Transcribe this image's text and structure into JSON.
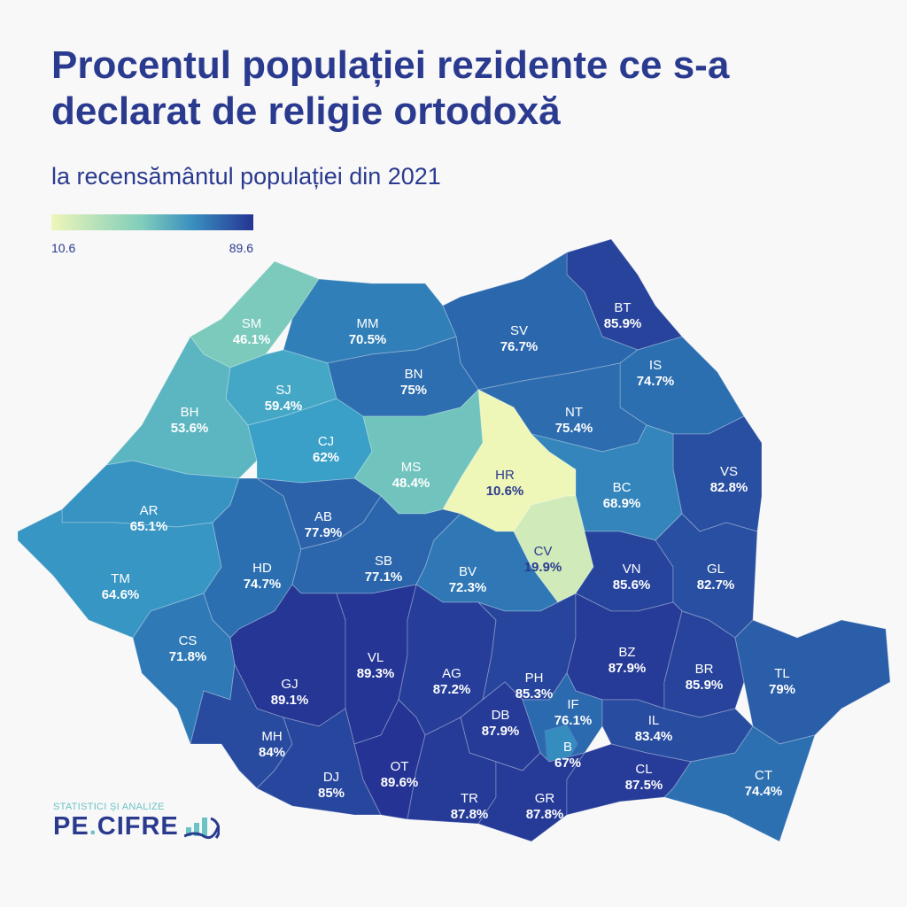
{
  "title": "Procentul populației rezidente ce s-a declarat de religie ortodoxă",
  "subtitle": "la recensământul populației din 2021",
  "legend": {
    "min": "10.6",
    "max": "89.6"
  },
  "logo": {
    "tagline": "STATISTICI ȘI ANALIZE",
    "name_part1": "PE",
    "name_part2": "CIFRE"
  },
  "chart_data": {
    "type": "choropleth",
    "title": "Procentul populației rezidente ce s-a declarat de religie ortodoxă",
    "unit": "%",
    "range": [
      10.6,
      89.6
    ],
    "colors": {
      "low": "#eef6b8",
      "mid": "#7fcdbb",
      "high": "#253494"
    },
    "counties": [
      {
        "code": "BT",
        "value": 85.9,
        "label": "85.9%"
      },
      {
        "code": "SM",
        "value": 46.1,
        "label": "46.1%"
      },
      {
        "code": "MM",
        "value": 70.5,
        "label": "70.5%"
      },
      {
        "code": "SV",
        "value": 76.7,
        "label": "76.7%"
      },
      {
        "code": "BH",
        "value": 53.6,
        "label": "53.6%"
      },
      {
        "code": "SJ",
        "value": 59.4,
        "label": "59.4%"
      },
      {
        "code": "BN",
        "value": 75,
        "label": "75%"
      },
      {
        "code": "CJ",
        "value": 62,
        "label": "62%"
      },
      {
        "code": "IS",
        "value": 74.7,
        "label": "74.7%"
      },
      {
        "code": "NT",
        "value": 75.4,
        "label": "75.4%"
      },
      {
        "code": "MS",
        "value": 48.4,
        "label": "48.4%"
      },
      {
        "code": "HR",
        "value": 10.6,
        "label": "10.6%"
      },
      {
        "code": "VS",
        "value": 82.8,
        "label": "82.8%"
      },
      {
        "code": "BC",
        "value": 68.9,
        "label": "68.9%"
      },
      {
        "code": "AR",
        "value": 65.1,
        "label": "65.1%"
      },
      {
        "code": "TM",
        "value": 64.6,
        "label": "64.6%"
      },
      {
        "code": "CS",
        "value": 71.8,
        "label": "71.8%"
      },
      {
        "code": "HD",
        "value": 74.7,
        "label": "74.7%"
      },
      {
        "code": "AB",
        "value": 77.9,
        "label": "77.9%"
      },
      {
        "code": "SB",
        "value": 77.1,
        "label": "77.1%"
      },
      {
        "code": "BV",
        "value": 72.3,
        "label": "72.3%"
      },
      {
        "code": "CV",
        "value": 19.9,
        "label": "19.9%"
      },
      {
        "code": "VN",
        "value": 85.6,
        "label": "85.6%"
      },
      {
        "code": "GL",
        "value": 82.7,
        "label": "82.7%"
      },
      {
        "code": "GJ",
        "value": 89.1,
        "label": "89.1%"
      },
      {
        "code": "VL",
        "value": 89.3,
        "label": "89.3%"
      },
      {
        "code": "AG",
        "value": 87.2,
        "label": "87.2%"
      },
      {
        "code": "PH",
        "value": 85.3,
        "label": "85.3%"
      },
      {
        "code": "BZ",
        "value": 87.9,
        "label": "87.9%"
      },
      {
        "code": "BR",
        "value": 85.9,
        "label": "85.9%"
      },
      {
        "code": "TL",
        "value": 79,
        "label": "79%"
      },
      {
        "code": "DB",
        "value": 87.9,
        "label": "87.9%"
      },
      {
        "code": "IF",
        "value": 76.1,
        "label": "76.1%"
      },
      {
        "code": "B",
        "value": 67,
        "label": "67%"
      },
      {
        "code": "IL",
        "value": 83.4,
        "label": "83.4%"
      },
      {
        "code": "MH",
        "value": 84,
        "label": "84%"
      },
      {
        "code": "DJ",
        "value": 85,
        "label": "85%"
      },
      {
        "code": "OT",
        "value": 89.6,
        "label": "89.6%"
      },
      {
        "code": "TR",
        "value": 87.8,
        "label": "87.8%"
      },
      {
        "code": "GR",
        "value": 87.8,
        "label": "87.8%"
      },
      {
        "code": "CL",
        "value": 87.5,
        "label": "87.5%"
      },
      {
        "code": "CT",
        "value": 74.4,
        "label": "74.4%"
      }
    ]
  }
}
